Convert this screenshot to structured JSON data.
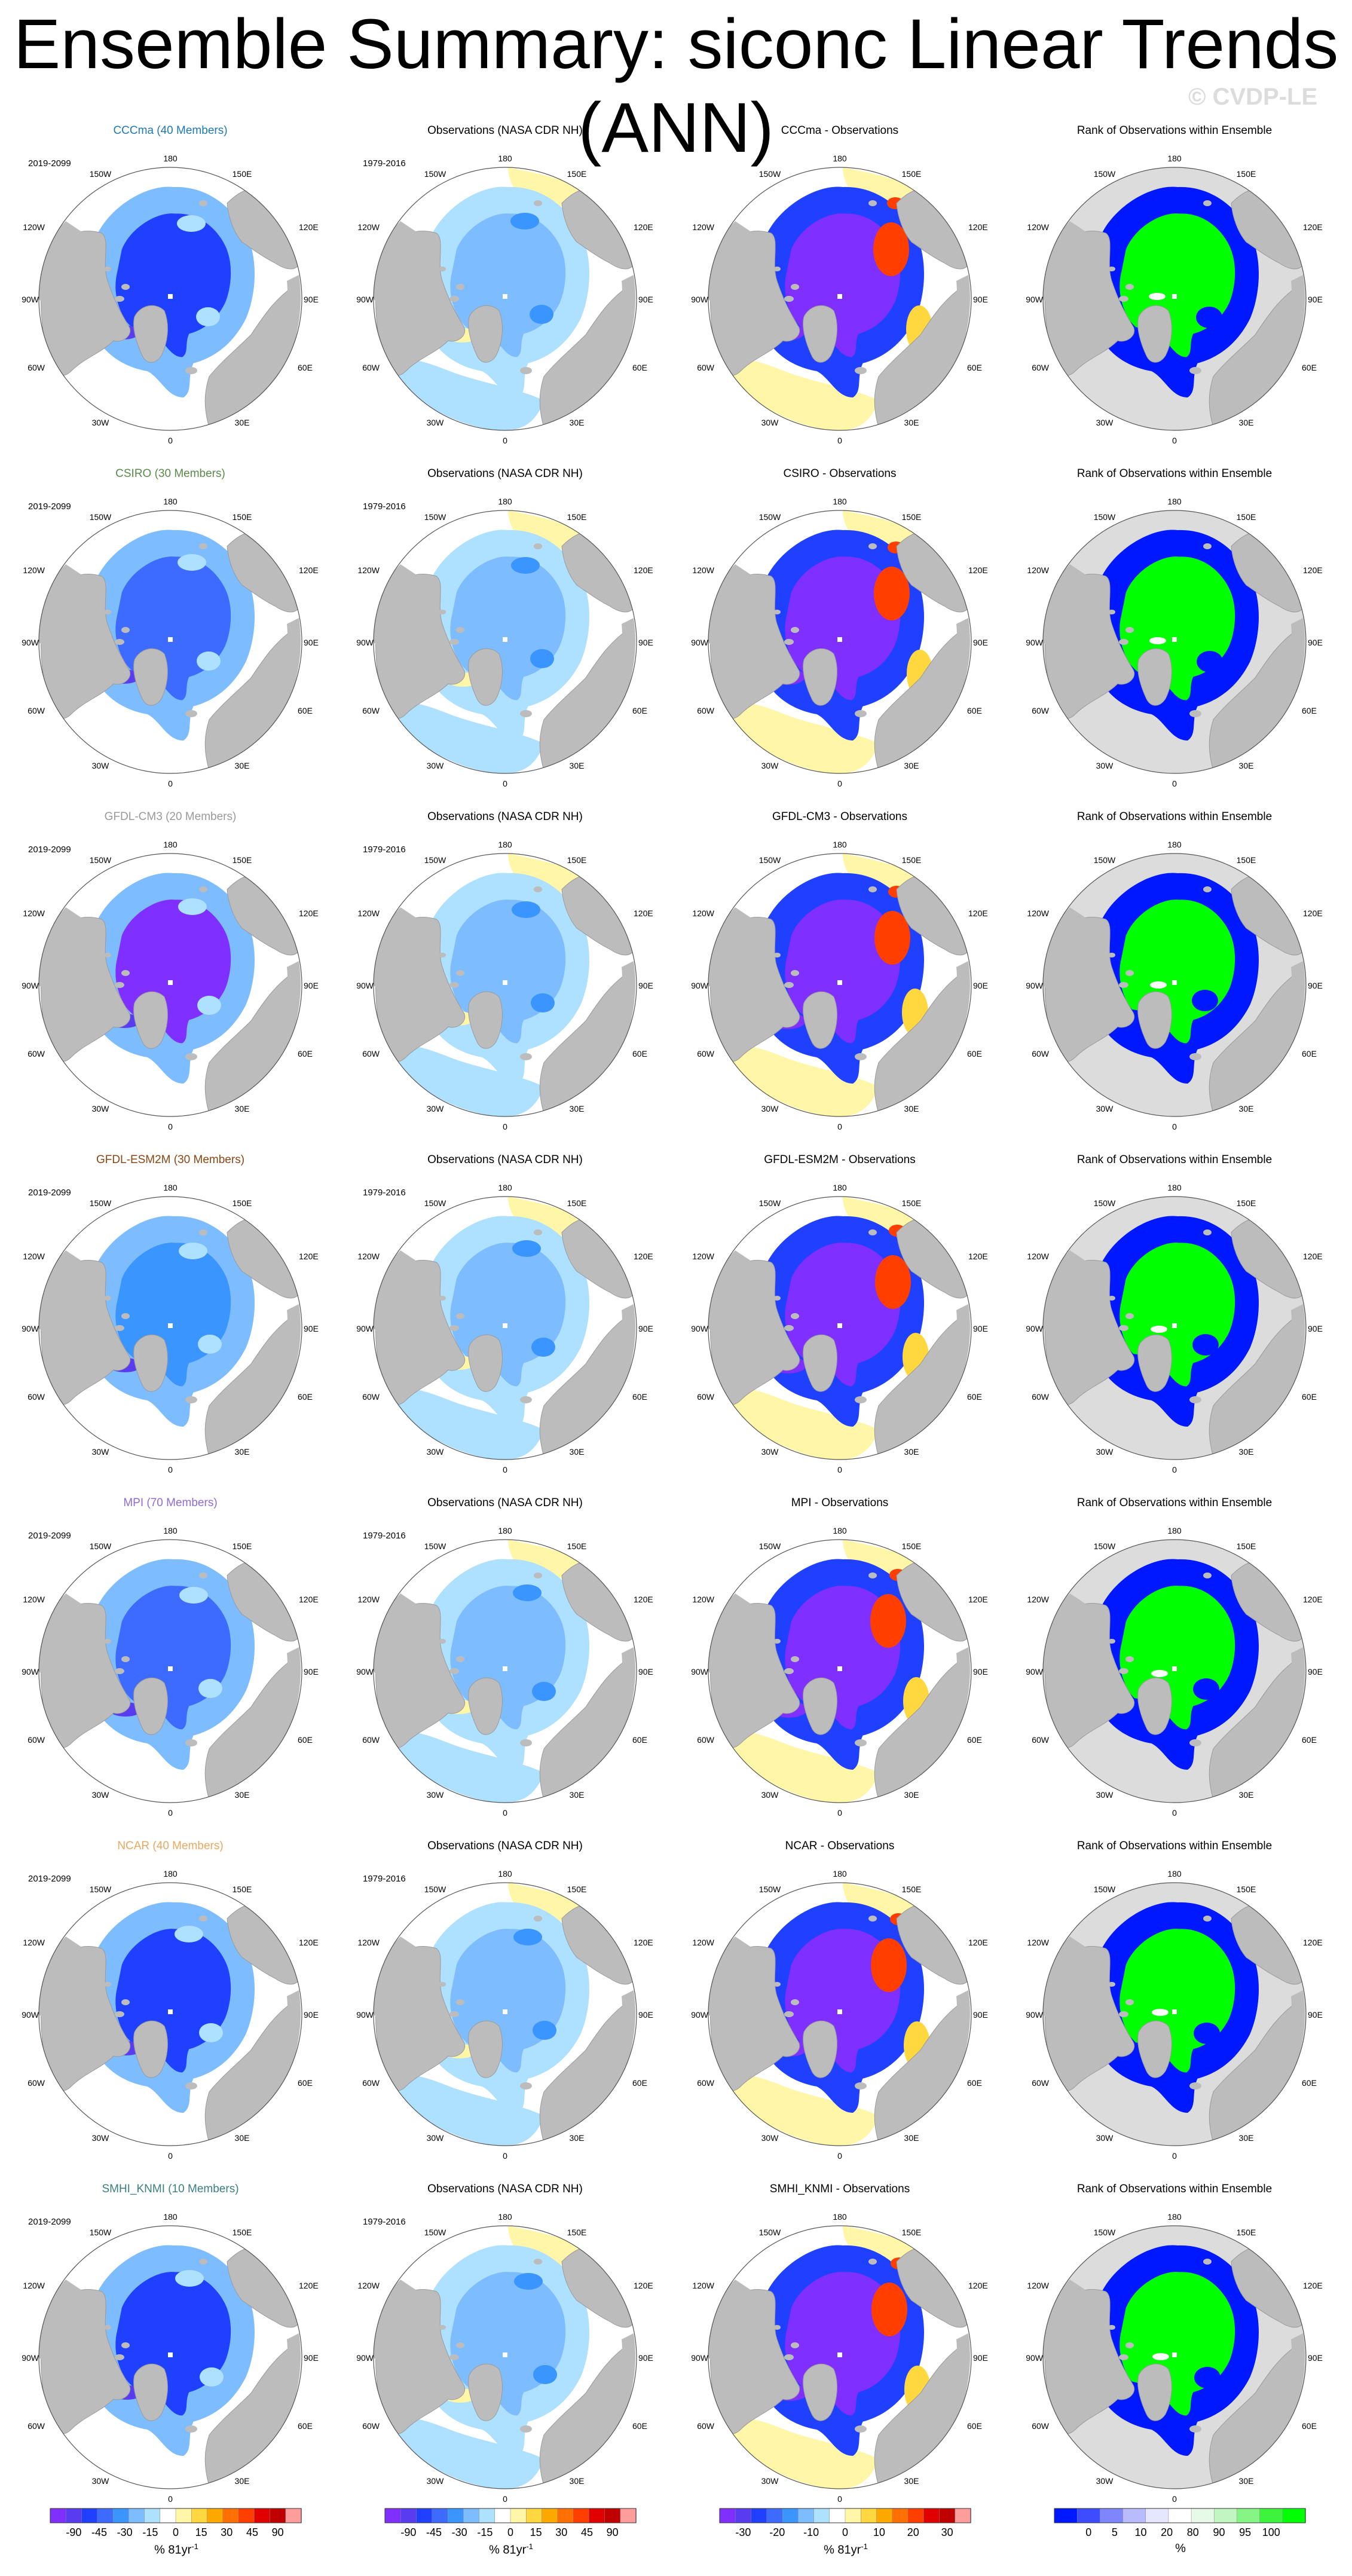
{
  "title": "Ensemble Summary: siconc Linear Trends (ANN)",
  "watermark": "© CVDP-LE",
  "colors": {
    "land": "#bcbcbc",
    "ocean_blank": "#ffffff",
    "ensemble_titles": {
      "CCCma": "#1f77b4",
      "CSIRO": "#5a8a4a",
      "GFDL-CM3": "#9a9a9a",
      "GFDL-ESM2M": "#8b4513",
      "MPI": "#8f6bd8",
      "NCAR": "#e8a860",
      "SMHI_KNMI": "#3a7f7f"
    }
  },
  "axis_labels": {
    "lon_top": "180",
    "lon_bottom": "0",
    "lon_150w": "150W",
    "lon_150e": "150E",
    "lon_120w": "120W",
    "lon_120e": "120E",
    "lon_90w": "90W",
    "lon_90e": "90E",
    "lon_60w": "60W",
    "lon_60e": "60E",
    "lon_30w": "30W",
    "lon_30e": "30E"
  },
  "rows": [
    {
      "model": "CCCma",
      "ens_title": "CCCma (40 Members)",
      "ens_period": "2019-2099",
      "obs_title": "Observations (NASA CDR NH)",
      "obs_period": "1979-2016",
      "diff_title": "CCCma - Observations",
      "rank_title": "Rank of Observations within Ensemble"
    },
    {
      "model": "CSIRO",
      "ens_title": "CSIRO (30 Members)",
      "ens_period": "2019-2099",
      "obs_title": "Observations (NASA CDR NH)",
      "obs_period": "1979-2016",
      "diff_title": "CSIRO - Observations",
      "rank_title": "Rank of Observations within Ensemble"
    },
    {
      "model": "GFDL-CM3",
      "ens_title": "GFDL-CM3 (20 Members)",
      "ens_period": "2019-2099",
      "obs_title": "Observations (NASA CDR NH)",
      "obs_period": "1979-2016",
      "diff_title": "GFDL-CM3 - Observations",
      "rank_title": "Rank of Observations within Ensemble"
    },
    {
      "model": "GFDL-ESM2M",
      "ens_title": "GFDL-ESM2M (30 Members)",
      "ens_period": "2019-2099",
      "obs_title": "Observations (NASA CDR NH)",
      "obs_period": "1979-2016",
      "diff_title": "GFDL-ESM2M - Observations",
      "rank_title": "Rank of Observations within Ensemble"
    },
    {
      "model": "MPI",
      "ens_title": "MPI (70 Members)",
      "ens_period": "2019-2099",
      "obs_title": "Observations (NASA CDR NH)",
      "obs_period": "1979-2016",
      "diff_title": "MPI - Observations",
      "rank_title": "Rank of Observations within Ensemble"
    },
    {
      "model": "NCAR",
      "ens_title": "NCAR (40 Members)",
      "ens_period": "2019-2099",
      "obs_title": "Observations (NASA CDR NH)",
      "obs_period": "1979-2016",
      "diff_title": "NCAR - Observations",
      "rank_title": "Rank of Observations within Ensemble"
    },
    {
      "model": "SMHI_KNMI",
      "ens_title": "SMHI_KNMI (10 Members)",
      "ens_period": "2019-2099",
      "obs_title": "Observations (NASA CDR NH)",
      "obs_period": "1979-2016",
      "diff_title": "SMHI_KNMI - Observations",
      "rank_title": "Rank of Observations within Ensemble"
    }
  ],
  "colorbars": [
    {
      "name": "trend",
      "labels": [
        "-90",
        "-45",
        "-30",
        "-15",
        "0",
        "15",
        "30",
        "45",
        "90"
      ],
      "unit": "% 81yr",
      "unit_sup": "-1",
      "colors": [
        "#7f2fff",
        "#5a3cf0",
        "#2040ff",
        "#3d6bff",
        "#3a95ff",
        "#7cbcff",
        "#aee0ff",
        "#ffffff",
        "#fff6a8",
        "#ffd840",
        "#ffa800",
        "#ff7000",
        "#ff3e00",
        "#e00000",
        "#c00000",
        "#ff9d9d"
      ]
    },
    {
      "name": "trend-obs",
      "labels": [
        "-90",
        "-45",
        "-30",
        "-15",
        "0",
        "15",
        "30",
        "45",
        "90"
      ],
      "unit": "% 81yr",
      "unit_sup": "-1",
      "colors": [
        "#7f2fff",
        "#5a3cf0",
        "#2040ff",
        "#3d6bff",
        "#3a95ff",
        "#7cbcff",
        "#aee0ff",
        "#ffffff",
        "#fff6a8",
        "#ffd840",
        "#ffa800",
        "#ff7000",
        "#ff3e00",
        "#e00000",
        "#c00000",
        "#ff9d9d"
      ]
    },
    {
      "name": "difference",
      "labels": [
        "-30",
        "-20",
        "-10",
        "0",
        "10",
        "20",
        "30"
      ],
      "unit": "% 81yr",
      "unit_sup": "-1",
      "colors": [
        "#7f2fff",
        "#5a3cf0",
        "#2040ff",
        "#3d6bff",
        "#3a95ff",
        "#7cbcff",
        "#aee0ff",
        "#ffffff",
        "#fff6a8",
        "#ffd840",
        "#ffa800",
        "#ff7000",
        "#ff3e00",
        "#e00000",
        "#c00000",
        "#ff9d9d"
      ]
    },
    {
      "name": "rank",
      "labels": [
        "0",
        "5",
        "10",
        "20",
        "80",
        "90",
        "95",
        "100"
      ],
      "unit": "%",
      "unit_sup": "",
      "colors": [
        "#0018ff",
        "#3c4cff",
        "#7e86ff",
        "#b8bcff",
        "#e6e6ff",
        "#ffffff",
        "#e7fae7",
        "#c0f7c0",
        "#86f586",
        "#3df43d",
        "#00ff00"
      ]
    }
  ]
}
